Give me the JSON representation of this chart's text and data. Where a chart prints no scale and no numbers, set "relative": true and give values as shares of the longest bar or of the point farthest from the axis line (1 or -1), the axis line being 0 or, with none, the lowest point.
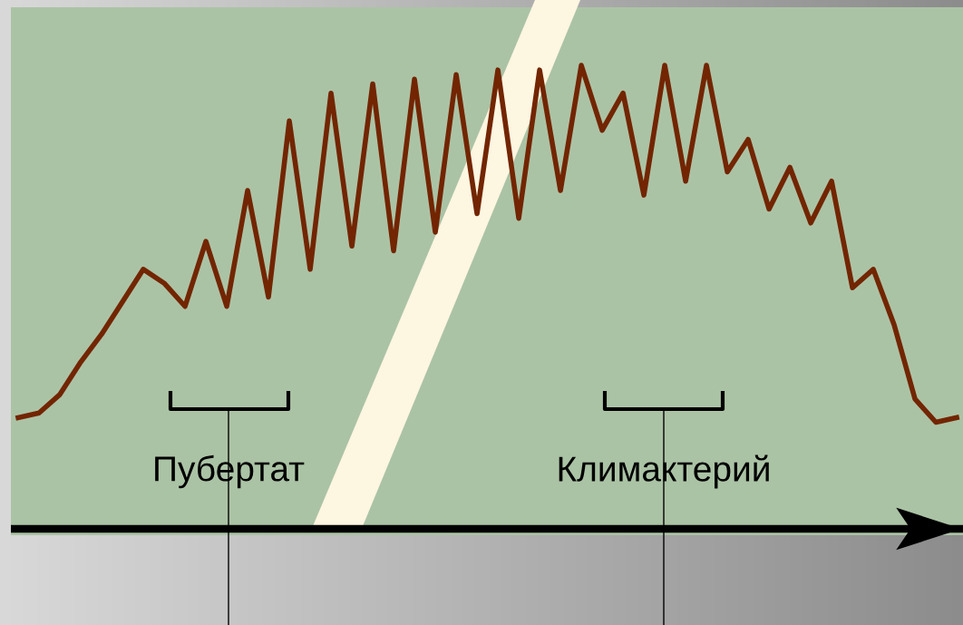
{
  "chart_data": {
    "type": "line",
    "relative": true,
    "tick_labels": false,
    "legend": false,
    "marker": "none",
    "line_style": "solid",
    "categories": [
      null,
      null,
      null,
      null,
      null,
      null,
      null,
      null,
      null,
      null,
      null,
      null,
      null,
      null,
      null,
      null,
      null,
      null,
      null,
      null,
      null,
      null,
      null,
      null,
      null,
      null,
      null,
      null,
      null,
      null,
      null,
      null,
      null,
      null,
      null,
      null,
      null,
      null,
      null,
      null,
      null,
      null,
      null,
      null,
      null,
      null
    ],
    "series": [
      {
        "color": "#722500",
        "values": [
          0.24,
          0.25,
          0.29,
          0.36,
          0.42,
          0.49,
          0.56,
          0.53,
          0.48,
          0.62,
          0.48,
          0.73,
          0.5,
          0.88,
          0.56,
          0.94,
          0.61,
          0.96,
          0.6,
          0.97,
          0.64,
          0.98,
          0.68,
          0.99,
          0.67,
          0.99,
          0.73,
          1.0,
          0.86,
          0.94,
          0.72,
          1.0,
          0.75,
          1.0,
          0.77,
          0.84,
          0.69,
          0.78,
          0.66,
          0.75,
          0.52,
          0.56,
          0.44,
          0.28,
          0.23,
          0.24
        ]
      }
    ],
    "annotations": [
      "Пубертат",
      "Климактерий"
    ]
  }
}
